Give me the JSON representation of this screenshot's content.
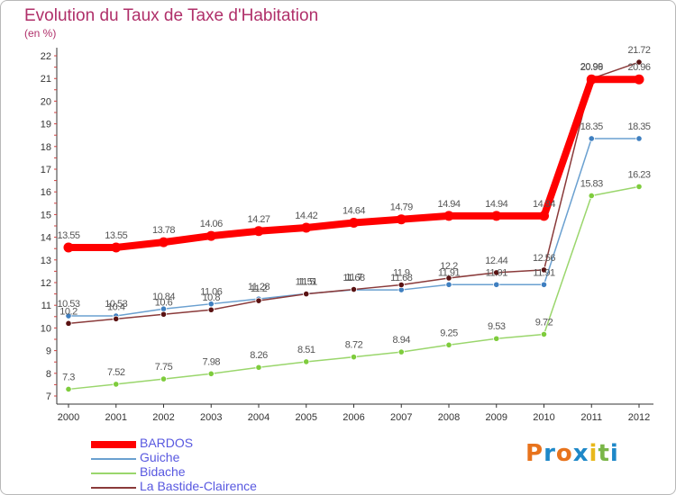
{
  "title": "Evolution du Taux de Taxe d'Habitation",
  "subtitle": "(en %)",
  "logo": {
    "text": "Proxiti",
    "letters": [
      {
        "char": "P",
        "color": "#e8731c"
      },
      {
        "char": "r",
        "color": "#1e88c8"
      },
      {
        "char": "o",
        "color": "#e8731c"
      },
      {
        "char": "x",
        "color": "#1e88c8"
      },
      {
        "char": "i",
        "color": "#e8b81c"
      },
      {
        "char": "t",
        "color": "#7ab648"
      },
      {
        "char": "i",
        "color": "#1e88c8"
      }
    ]
  },
  "chart_data": {
    "type": "line",
    "title": "Evolution du Taux de Taxe d'Habitation",
    "ylabel": "(en %)",
    "xlabel": "",
    "ylim": [
      7,
      22
    ],
    "yticks": [
      "7",
      "8",
      "9",
      "10",
      "11",
      "12",
      "13",
      "14",
      "15",
      "16",
      "17",
      "18",
      "19",
      "20",
      "21",
      "22"
    ],
    "x": [
      "2000",
      "2001",
      "2002",
      "2003",
      "2004",
      "2005",
      "2006",
      "2007",
      "2008",
      "2009",
      "2010",
      "2011",
      "2012"
    ],
    "grid": false,
    "legend_position": "bottom-left",
    "series": [
      {
        "name": "BARDOS",
        "color": "#ff0000",
        "values": [
          13.55,
          13.55,
          13.78,
          14.06,
          14.27,
          14.42,
          14.64,
          14.79,
          14.94,
          14.94,
          14.94,
          20.96,
          20.96
        ],
        "labels": [
          "13.55",
          "13.55",
          "13.78",
          "14.06",
          "14.27",
          "14.42",
          "14.64",
          "14.79",
          "14.94",
          "14.94",
          "14.94",
          "20.96",
          "20.96"
        ]
      },
      {
        "name": "Guiche",
        "color": "#6aa0d0",
        "values": [
          10.53,
          10.53,
          10.84,
          11.06,
          11.28,
          11.51,
          11.68,
          11.68,
          11.91,
          11.91,
          11.91,
          18.35,
          18.35
        ],
        "labels": [
          "10.53",
          "10.53",
          "10.84",
          "11.06",
          "11.28",
          "11.51",
          "11.68",
          "11.68",
          "11.91",
          "11.91",
          "11.91",
          "18.35",
          "18.35"
        ]
      },
      {
        "name": "Bidache",
        "color": "#9ad66c",
        "values": [
          7.3,
          7.52,
          7.75,
          7.98,
          8.26,
          8.51,
          8.72,
          8.94,
          9.25,
          9.53,
          9.72,
          15.83,
          16.23
        ],
        "labels": [
          "7.3",
          "7.52",
          "7.75",
          "7.98",
          "8.26",
          "8.51",
          "8.72",
          "8.94",
          "9.25",
          "9.53",
          "9.72",
          "15.83",
          "16.23"
        ]
      },
      {
        "name": "La Bastide-Clairence",
        "color": "#8a3a3a",
        "values": [
          10.2,
          10.4,
          10.6,
          10.8,
          11.2,
          11.5,
          11.7,
          11.9,
          12.2,
          12.44,
          12.56,
          20.99,
          21.72
        ],
        "labels": [
          "10.2",
          "10.4",
          "10.6",
          "10.8",
          "11.2",
          "11.5",
          "11.7",
          "11.9",
          "12.2",
          "12.44",
          "12.56",
          "20.99",
          "21.72"
        ]
      }
    ]
  }
}
